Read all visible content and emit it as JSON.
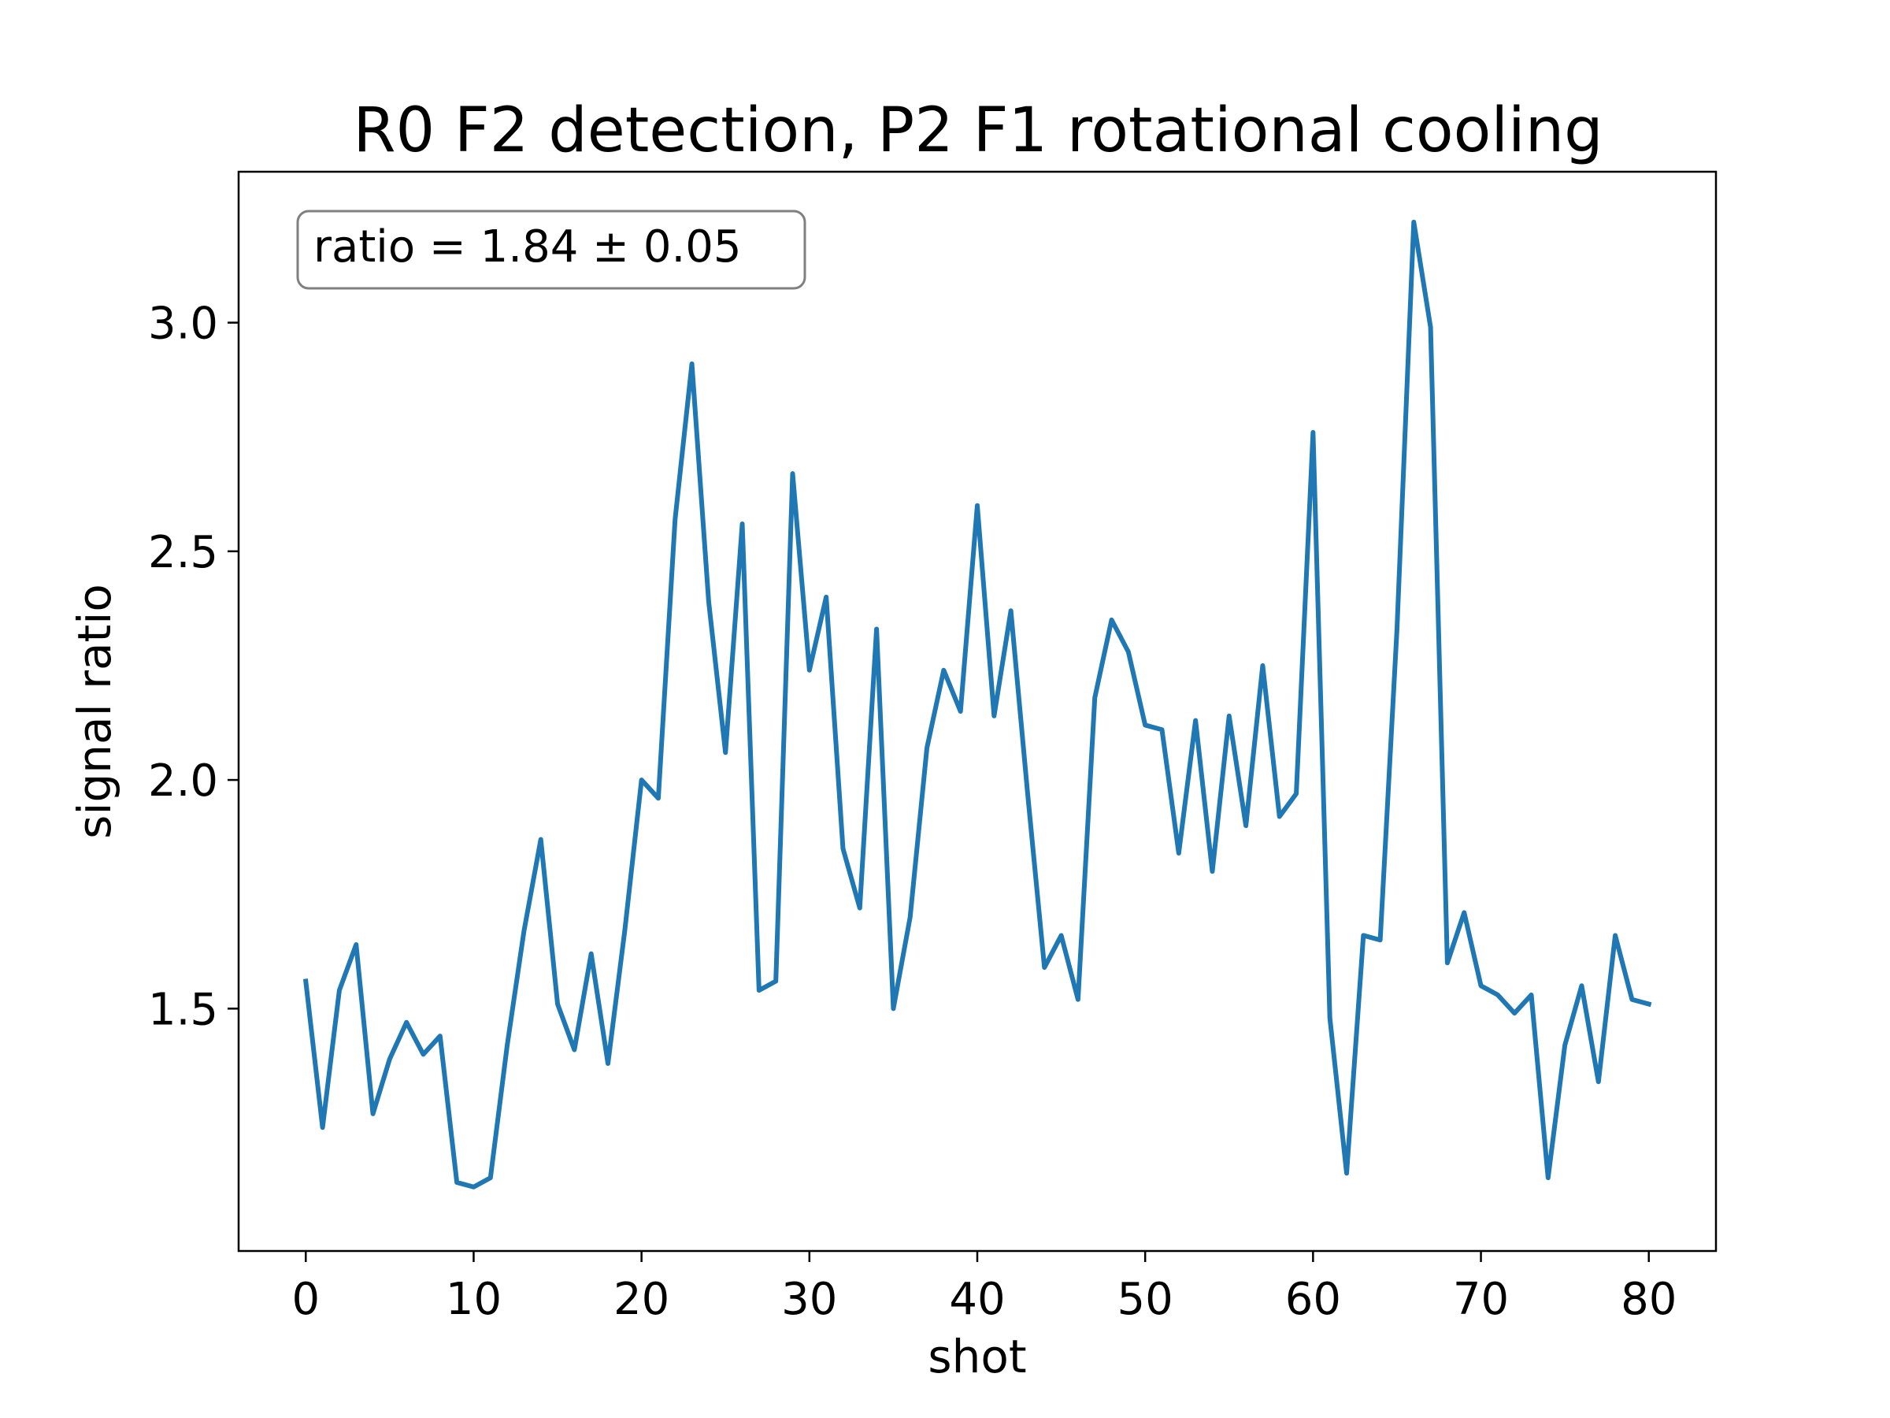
{
  "chart_data": {
    "type": "line",
    "title": "R0 F2 detection, P2 F1 rotational cooling",
    "xlabel": "shot",
    "ylabel": "signal ratio",
    "xlim": [
      -4,
      84
    ],
    "ylim": [
      0.97,
      3.33
    ],
    "xticks": [
      0,
      10,
      20,
      30,
      40,
      50,
      60,
      70,
      80
    ],
    "xtick_labels": [
      "0",
      "10",
      "20",
      "30",
      "40",
      "50",
      "60",
      "70",
      "80"
    ],
    "yticks": [
      1.5,
      2.0,
      2.5,
      3.0
    ],
    "ytick_labels": [
      "1.5",
      "2.0",
      "2.5",
      "3.0"
    ],
    "grid": false,
    "annotation": "ratio = 1.84 ± 0.05",
    "colors": {
      "series": "#1f77b4",
      "axes": "#000000",
      "annotation_border": "#808080"
    },
    "series": [
      {
        "x": [
          0,
          1,
          2,
          3,
          4,
          5,
          6,
          7,
          8,
          9,
          10,
          11,
          12,
          13,
          14,
          15,
          16,
          17,
          18,
          19,
          20,
          21,
          22,
          23,
          24,
          25,
          26,
          27,
          28,
          29,
          30,
          31,
          32,
          33,
          34,
          35,
          36,
          37,
          38,
          39,
          40,
          41,
          42,
          43,
          44,
          45,
          46,
          47,
          48,
          49,
          50,
          51,
          52,
          53,
          54,
          55,
          56,
          57,
          58,
          59,
          60,
          61,
          62,
          63,
          64,
          65,
          66,
          67,
          68,
          69,
          70,
          71,
          72,
          73,
          74,
          75,
          76,
          77,
          78,
          79,
          80
        ],
        "values": [
          1.56,
          1.24,
          1.54,
          1.64,
          1.27,
          1.39,
          1.47,
          1.4,
          1.44,
          1.12,
          1.11,
          1.13,
          1.42,
          1.67,
          1.87,
          1.51,
          1.41,
          1.62,
          1.38,
          1.67,
          2.0,
          1.96,
          2.57,
          2.91,
          2.39,
          2.06,
          2.56,
          1.54,
          1.56,
          2.67,
          2.24,
          2.4,
          1.85,
          1.72,
          2.33,
          1.5,
          1.7,
          2.07,
          2.24,
          2.15,
          2.6,
          2.14,
          2.37,
          1.97,
          1.59,
          1.66,
          1.52,
          2.18,
          2.35,
          2.28,
          2.12,
          2.11,
          1.84,
          2.13,
          1.8,
          2.14,
          1.9,
          2.25,
          1.92,
          1.97,
          2.76,
          1.48,
          1.14,
          1.66,
          1.65,
          2.33,
          3.22,
          2.99,
          1.6,
          1.71,
          1.55,
          1.53,
          1.49,
          1.53,
          1.13,
          1.42,
          1.55,
          1.34,
          1.66,
          1.52,
          1.51
        ]
      }
    ]
  }
}
